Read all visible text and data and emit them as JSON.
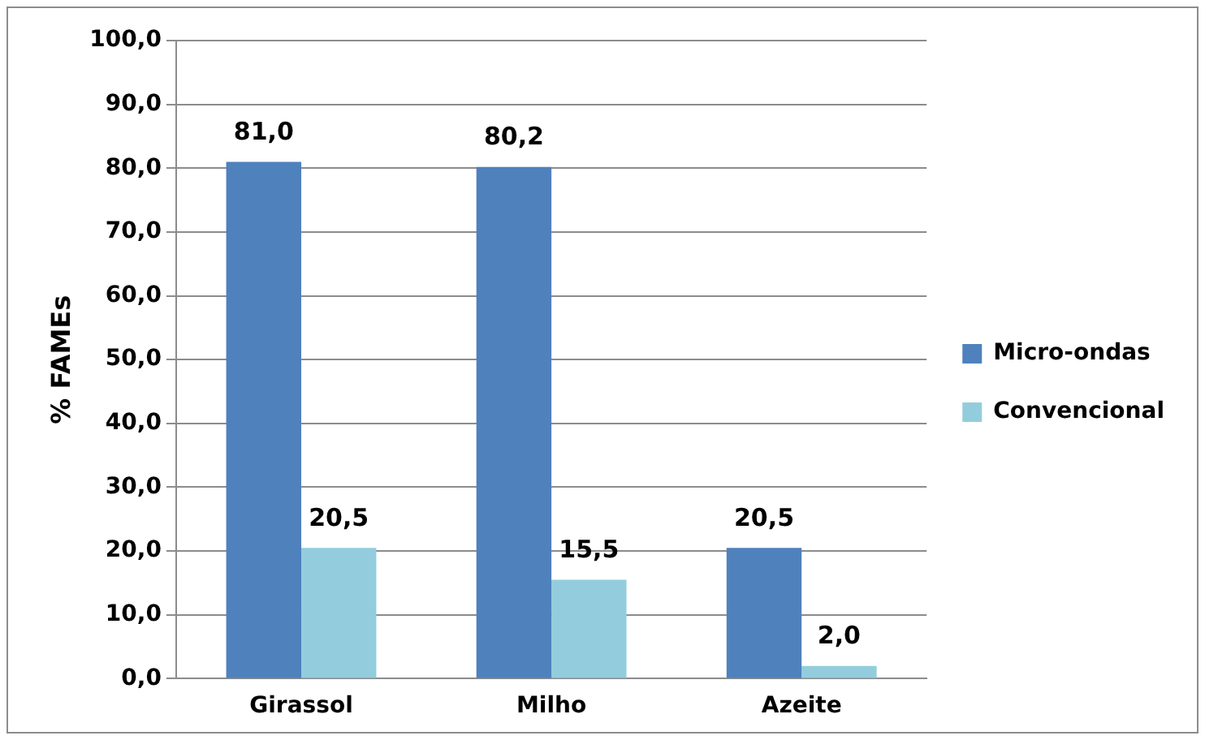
{
  "chart_data": {
    "type": "bar",
    "ylabel": "% FAMEs",
    "categories": [
      "Girassol",
      "Milho",
      "Azeite"
    ],
    "series": [
      {
        "name": "Micro-ondas",
        "color": "#4f81bd",
        "values": [
          81.0,
          80.2,
          20.5
        ],
        "value_labels": [
          "81,0",
          "80,2",
          "20,5"
        ]
      },
      {
        "name": "Convencional",
        "color": "#93cddd",
        "values": [
          20.5,
          15.5,
          2.0
        ],
        "value_labels": [
          "20,5",
          "15,5",
          "2,0"
        ]
      }
    ],
    "ylim": [
      0,
      100
    ],
    "yticks": [
      {
        "value": 0,
        "label": "0,0"
      },
      {
        "value": 10,
        "label": "10,0"
      },
      {
        "value": 20,
        "label": "20,0"
      },
      {
        "value": 30,
        "label": "30,0"
      },
      {
        "value": 40,
        "label": "40,0"
      },
      {
        "value": 50,
        "label": "50,0"
      },
      {
        "value": 60,
        "label": "60,0"
      },
      {
        "value": 70,
        "label": "70,0"
      },
      {
        "value": 80,
        "label": "80,0"
      },
      {
        "value": 90,
        "label": "90,0"
      },
      {
        "value": 100,
        "label": "100,0"
      }
    ],
    "grid": "y",
    "legend": "right"
  }
}
